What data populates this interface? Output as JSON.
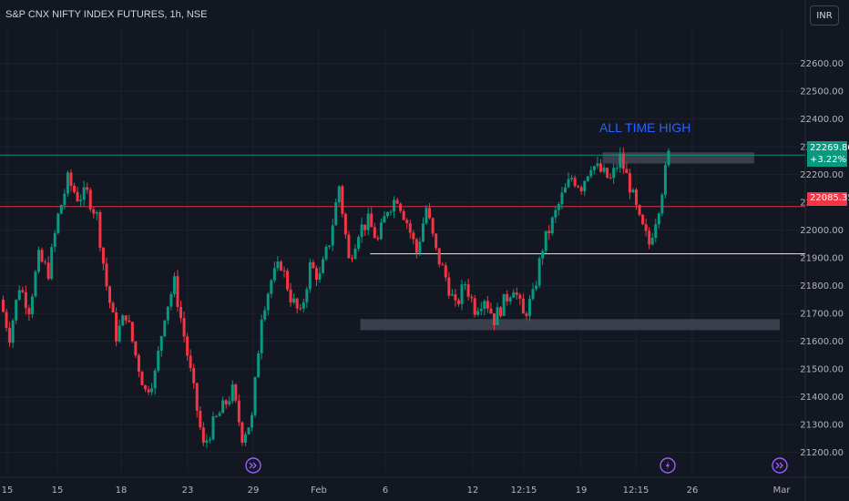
{
  "header": {
    "symbol_title": "S&P CNX NIFTY INDEX FUTURES, 1h, NSE",
    "currency_label": "INR"
  },
  "annotation": {
    "ath_text": "ALL TIME HIGH"
  },
  "last_price": {
    "value": "22269.80",
    "change": "+3.22%"
  },
  "marker_price": {
    "value": "22085.35"
  },
  "colors": {
    "background": "#131722",
    "up": "#089981",
    "down": "#f23645",
    "grid": "#1e222d",
    "zone": "#4a4e5a",
    "annotation": "#2962ff",
    "event_icon": "#9c5dff"
  },
  "chart_data": {
    "type": "candlestick",
    "title": "S&P CNX NIFTY INDEX FUTURES, 1h, NSE",
    "y_ticks": [
      21200,
      21300,
      21400,
      21500,
      21600,
      21700,
      21800,
      21900,
      22000,
      22100,
      22200,
      22300,
      22400,
      22500,
      22600
    ],
    "y_tick_labels": [
      "21200.00",
      "21300.00",
      "21400.00",
      "21500.00",
      "21600.00",
      "21700.00",
      "21800.00",
      "21900.00",
      "22000.00",
      "22100.00",
      "22200.00",
      "22300.00",
      "22400.00",
      "22500.00",
      "22600.00"
    ],
    "ylim": [
      21130,
      22730
    ],
    "x_tick_labels": [
      "15",
      "15",
      "18",
      "23",
      "29",
      "Feb",
      "6",
      "12",
      "12:15",
      "19",
      "12:15",
      "26",
      "Mar"
    ],
    "grid": true,
    "close_path": [
      21750,
      21620,
      21800,
      21720,
      21900,
      21850,
      22050,
      22180,
      22120,
      22130,
      22050,
      21800,
      21620,
      21700,
      21550,
      21420,
      21480,
      21700,
      21810,
      21620,
      21420,
      21220,
      21300,
      21360,
      21420,
      21260,
      21320,
      21700,
      21820,
      21880,
      21760,
      21690,
      21870,
      21830,
      21960,
      22160,
      21890,
      22000,
      22030,
      21960,
      22080,
      22120,
      22030,
      21920,
      22080,
      21920,
      21830,
      21720,
      21810,
      21720,
      21760,
      21680,
      21740,
      21800,
      21690,
      21760,
      21940,
      22030,
      22120,
      22190,
      22160,
      22240,
      22210,
      22180,
      22260,
      22160,
      22030,
      21950,
      22090,
      22270
    ],
    "x_range_points": 70,
    "horizontal_lines": [
      {
        "price": 22270,
        "color": "#089981"
      },
      {
        "price": 22085,
        "color": "#f23645"
      },
      {
        "price": 21915,
        "color": "#ffffff",
        "from_point": 38
      }
    ],
    "zones": [
      {
        "price_low": 22240,
        "price_high": 22280,
        "from_point": 62,
        "to_point": 72
      },
      {
        "price_low": 21640,
        "price_high": 21680,
        "from_point": 37,
        "to_point": 75
      }
    ],
    "annotations": [
      "ALL TIME HIGH"
    ],
    "event_markers": [
      {
        "near_label": "29",
        "icon": "forward-arrow"
      },
      {
        "near_label": "12:15",
        "icon": "lightning"
      },
      {
        "near_label": "Mar",
        "icon": "forward-arrow"
      }
    ]
  }
}
